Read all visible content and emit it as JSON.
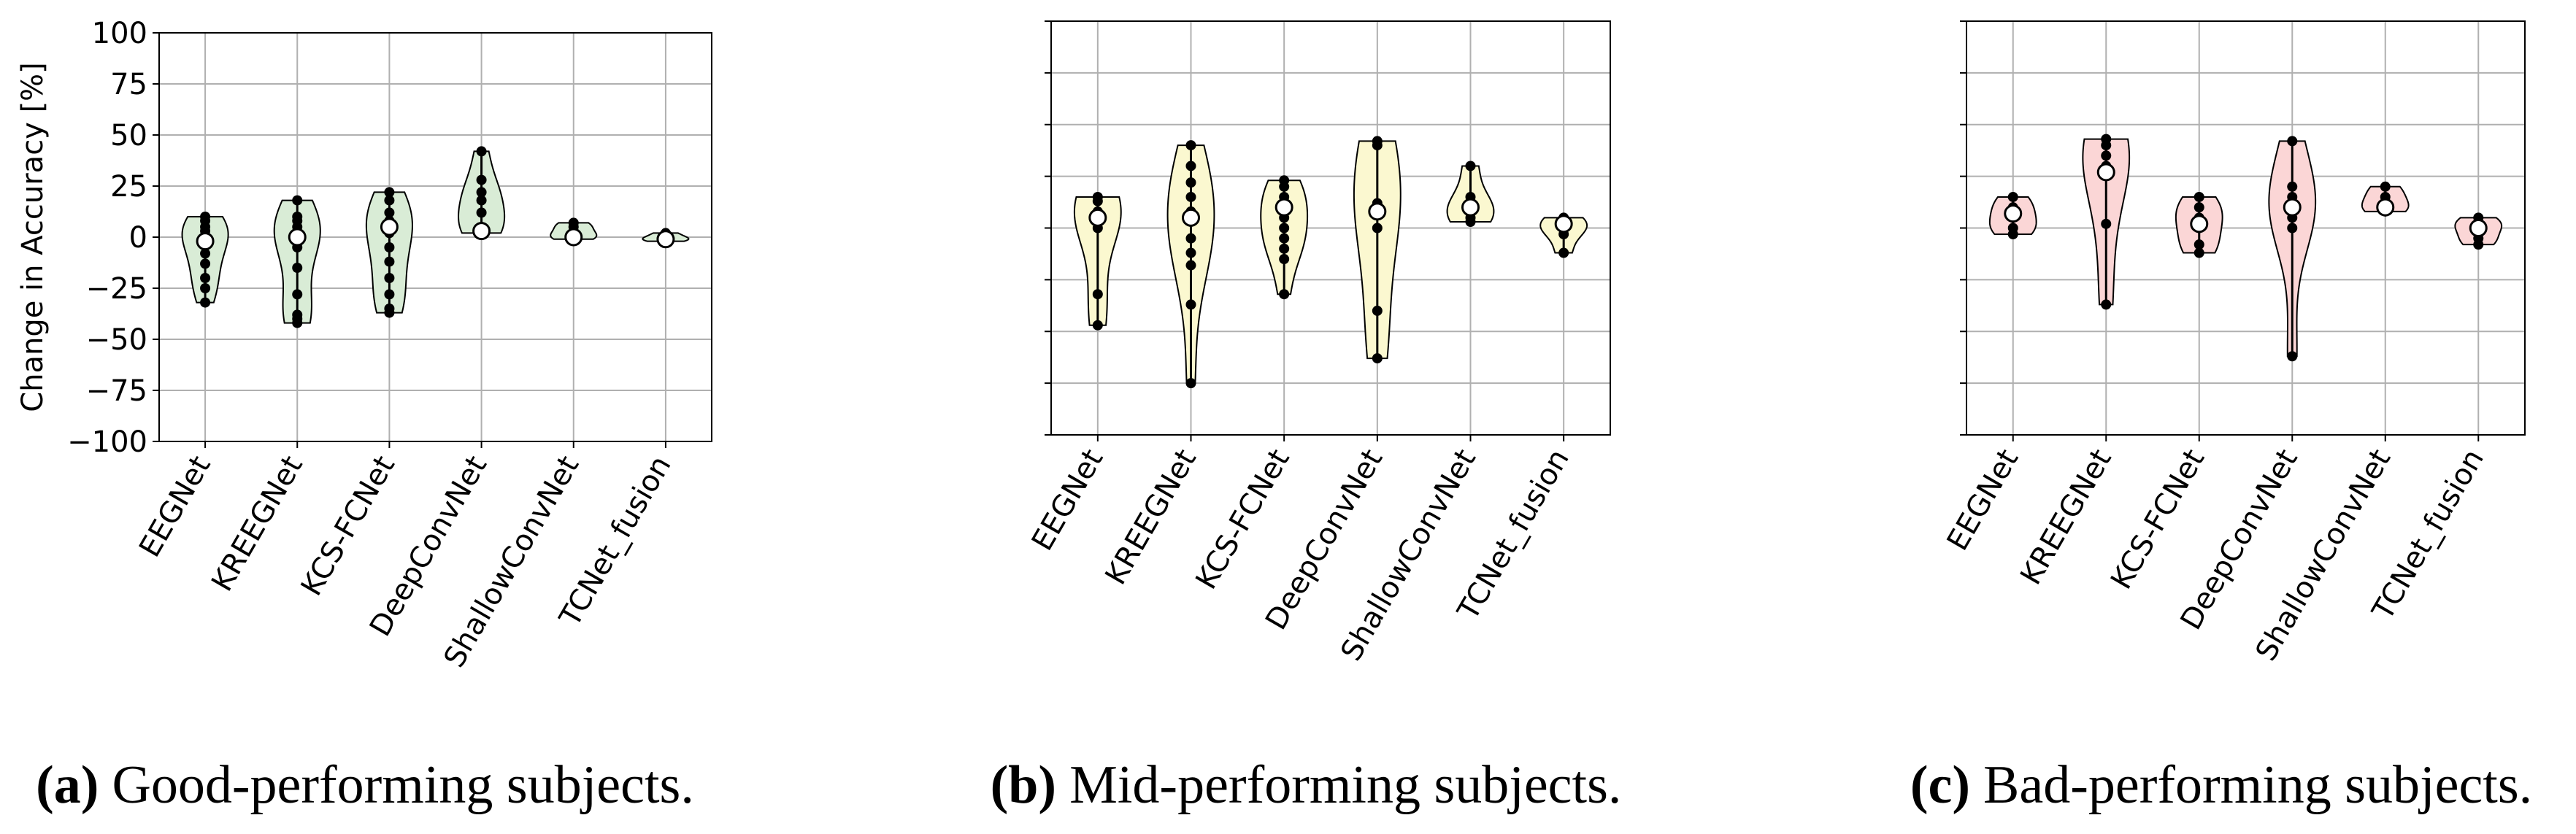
{
  "chart_data": [
    {
      "type": "violin",
      "caption_label": "(a)",
      "caption": "Good-performing subjects.",
      "ylabel": "Change in Accuracy [%]",
      "categories": [
        "EEGNet",
        "KREEGNet",
        "KCS-FCNet",
        "DeepConvNet",
        "ShallowConvNet",
        "TCNet_fusion"
      ],
      "points": [
        [
          10,
          8,
          5,
          3,
          0,
          -3,
          -8,
          -13,
          -20,
          -25,
          -32
        ],
        [
          18,
          10,
          8,
          5,
          2,
          0,
          -5,
          -15,
          -28,
          -38,
          -40,
          -42
        ],
        [
          22,
          18,
          12,
          8,
          5,
          2,
          -5,
          -12,
          -20,
          -28,
          -35,
          -37
        ],
        [
          42,
          28,
          22,
          18,
          12,
          5,
          3,
          2
        ],
        [
          7,
          5,
          2,
          0,
          -1
        ],
        [
          2,
          0,
          -1,
          -2
        ]
      ],
      "medians": [
        -2,
        0,
        5,
        3,
        0,
        -1
      ],
      "color": "#d9ecd6",
      "ylim": [
        -100,
        100
      ],
      "yticks": [
        {
          "value": -100,
          "label": "−100"
        },
        {
          "value": -75,
          "label": "−75"
        },
        {
          "value": -50,
          "label": "−50"
        },
        {
          "value": -25,
          "label": "−25"
        },
        0,
        25,
        50,
        75,
        100
      ],
      "show_ytick_labels": true,
      "grid": true
    },
    {
      "type": "violin",
      "caption_label": "(b)",
      "caption": "Mid-performing subjects.",
      "categories": [
        "EEGNet",
        "KREEGNet",
        "KCS-FCNet",
        "DeepConvNet",
        "ShallowConvNet",
        "TCNet_fusion"
      ],
      "points": [
        [
          15,
          13,
          8,
          5,
          0,
          -32,
          -47
        ],
        [
          40,
          30,
          22,
          15,
          8,
          3,
          -5,
          -12,
          -18,
          -37,
          -75
        ],
        [
          23,
          20,
          15,
          10,
          5,
          0,
          -5,
          -10,
          -15,
          -32
        ],
        [
          42,
          40,
          12,
          8,
          0,
          -40,
          -63
        ],
        [
          30,
          15,
          10,
          5,
          3
        ],
        [
          5,
          3,
          0,
          -3,
          -12
        ]
      ],
      "medians": [
        5,
        5,
        10,
        8,
        10,
        2
      ],
      "color": "#fbf8d0",
      "ylim": [
        -100,
        100
      ],
      "yticks": [
        -100,
        -75,
        -50,
        -25,
        0,
        25,
        50,
        75,
        100
      ],
      "show_ytick_labels": false,
      "grid": true
    },
    {
      "type": "violin",
      "caption_label": "(c)",
      "caption": "Bad-performing subjects.",
      "categories": [
        "EEGNet",
        "KREEGNet",
        "KCS-FCNet",
        "DeepConvNet",
        "ShallowConvNet",
        "TCNet_fusion"
      ],
      "points": [
        [
          15,
          10,
          5,
          0,
          -3
        ],
        [
          43,
          40,
          35,
          30,
          2,
          -37
        ],
        [
          15,
          10,
          5,
          0,
          -8,
          -12
        ],
        [
          42,
          20,
          15,
          10,
          5,
          0,
          -62
        ],
        [
          20,
          15,
          10,
          8
        ],
        [
          5,
          2,
          0,
          -5,
          -8
        ]
      ],
      "medians": [
        7,
        27,
        2,
        10,
        10,
        0
      ],
      "color": "#fbd6d6",
      "ylim": [
        -100,
        100
      ],
      "yticks": [
        -100,
        -75,
        -50,
        -25,
        0,
        25,
        50,
        75,
        100
      ],
      "show_ytick_labels": false,
      "grid": true
    }
  ]
}
